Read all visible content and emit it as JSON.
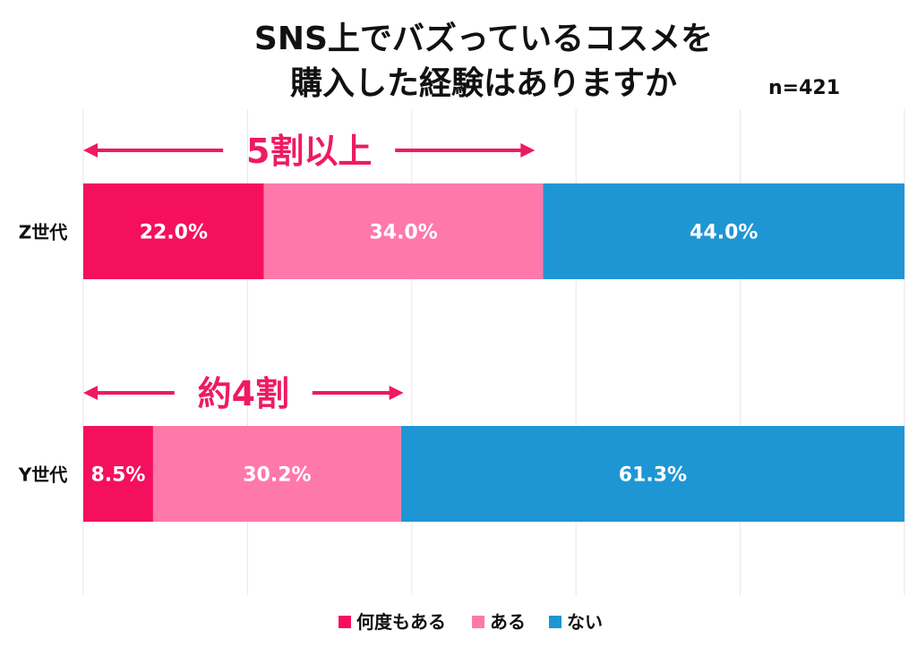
{
  "chart_data": {
    "type": "bar",
    "orientation": "horizontal",
    "stacked": true,
    "title_lines": [
      "SNS上でバズっているコスメを",
      "購入した経験はありますか"
    ],
    "note": "n=421",
    "categories": [
      "Z世代",
      "Y世代"
    ],
    "series": [
      {
        "name": "何度もある",
        "values": [
          22.0,
          8.5
        ],
        "labels": [
          "22.0%",
          "8.5%"
        ],
        "color": "#F5105E"
      },
      {
        "name": "ある",
        "values": [
          34.0,
          30.2
        ],
        "labels": [
          "34.0%",
          "30.2%"
        ],
        "color": "#FF78AA"
      },
      {
        "name": "ない",
        "values": [
          44.0,
          61.3
        ],
        "labels": [
          "44.0%",
          "61.3%"
        ],
        "color": "#1E96D4"
      }
    ],
    "xlim": [
      0,
      100
    ],
    "grid": true,
    "legend_position": "bottom",
    "annotations": [
      {
        "category": "Z世代",
        "text": "5割以上",
        "span": [
          0,
          55
        ],
        "color": "#EE1A62"
      },
      {
        "category": "Y世代",
        "text": "約4割",
        "span": [
          0,
          39
        ],
        "color": "#EE1A62"
      }
    ]
  }
}
